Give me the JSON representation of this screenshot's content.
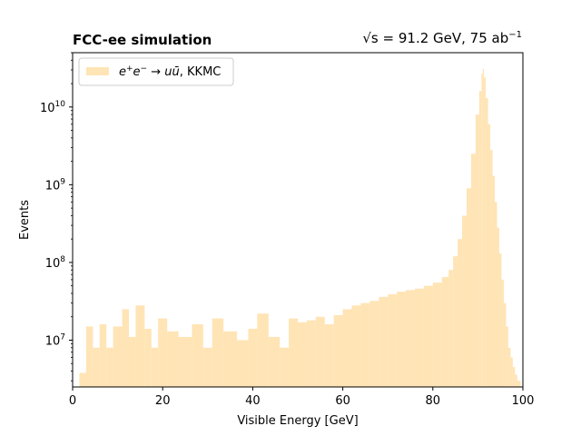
{
  "chart_data": {
    "type": "histogram",
    "title_left": "FCC-ee simulation",
    "title_right": {
      "sqrt": "√s",
      "rest": " = 91.2 GeV, 75 ab",
      "sup": "−1"
    },
    "xlabel": "Visible Energy [GeV]",
    "ylabel": "Events",
    "xlim": [
      0,
      100
    ],
    "ylim": [
      2500000.0,
      50000000000.0
    ],
    "yscale": "log",
    "x_ticks": [
      0,
      20,
      40,
      60,
      80,
      100
    ],
    "x_tick_labels": [
      "0",
      "20",
      "40",
      "60",
      "80",
      "100"
    ],
    "y_ticks": [
      10000000.0,
      100000000.0,
      1000000000.0,
      10000000000.0
    ],
    "y_tick_labels": [
      {
        "base": "10",
        "exp": "7"
      },
      {
        "base": "10",
        "exp": "8"
      },
      {
        "base": "10",
        "exp": "9"
      },
      {
        "base": "10",
        "exp": "10"
      }
    ],
    "legend": {
      "position": "upper-left",
      "label_parts": [
        {
          "t": "e",
          "style": "italic"
        },
        {
          "t": "+",
          "style": "sup"
        },
        {
          "t": "e",
          "style": "italic"
        },
        {
          "t": "−",
          "style": "sup"
        },
        {
          "t": " → ",
          "style": "normal"
        },
        {
          "t": "u",
          "style": "italic"
        },
        {
          "t": "ū",
          "style": "italic"
        },
        {
          "t": ", KKMC",
          "style": "normal"
        }
      ],
      "label": "e+e− → uū, KKMC"
    },
    "series": [
      {
        "name": "e+e− → uū, KKMC",
        "color": "#ffe4b5",
        "peak_x": 91.2,
        "peak_y": 31000000000.0,
        "bins": [
          {
            "x": 2,
            "y": 3800000.0
          },
          {
            "x": 4,
            "y": 15000000.0
          },
          {
            "x": 5,
            "y": 8000000.0
          },
          {
            "x": 7,
            "y": 16000000.0
          },
          {
            "x": 8,
            "y": 8000000.0
          },
          {
            "x": 10,
            "y": 15000000.0
          },
          {
            "x": 12,
            "y": 25000000.0
          },
          {
            "x": 13,
            "y": 11000000.0
          },
          {
            "x": 15,
            "y": 28000000.0
          },
          {
            "x": 17,
            "y": 14000000.0
          },
          {
            "x": 18,
            "y": 8000000.0
          },
          {
            "x": 20,
            "y": 19000000.0
          },
          {
            "x": 22,
            "y": 13000000.0
          },
          {
            "x": 25,
            "y": 11000000.0
          },
          {
            "x": 28,
            "y": 16000000.0
          },
          {
            "x": 30,
            "y": 8000000.0
          },
          {
            "x": 32,
            "y": 19000000.0
          },
          {
            "x": 35,
            "y": 13000000.0
          },
          {
            "x": 38,
            "y": 10000000.0
          },
          {
            "x": 40,
            "y": 14000000.0
          },
          {
            "x": 42,
            "y": 22000000.0
          },
          {
            "x": 45,
            "y": 11000000.0
          },
          {
            "x": 47,
            "y": 8000000.0
          },
          {
            "x": 49,
            "y": 19000000.0
          },
          {
            "x": 51,
            "y": 17000000.0
          },
          {
            "x": 53,
            "y": 18000000.0
          },
          {
            "x": 55,
            "y": 20000000.0
          },
          {
            "x": 57,
            "y": 16000000.0
          },
          {
            "x": 59,
            "y": 21000000.0
          },
          {
            "x": 61,
            "y": 25000000.0
          },
          {
            "x": 63,
            "y": 28000000.0
          },
          {
            "x": 65,
            "y": 30000000.0
          },
          {
            "x": 67,
            "y": 32000000.0
          },
          {
            "x": 69,
            "y": 36000000.0
          },
          {
            "x": 71,
            "y": 39000000.0
          },
          {
            "x": 73,
            "y": 42000000.0
          },
          {
            "x": 75,
            "y": 44000000.0
          },
          {
            "x": 77,
            "y": 46000000.0
          },
          {
            "x": 79,
            "y": 50000000.0
          },
          {
            "x": 81,
            "y": 55000000.0
          },
          {
            "x": 83,
            "y": 65000000.0
          },
          {
            "x": 84,
            "y": 80000000.0
          },
          {
            "x": 85,
            "y": 120000000.0
          },
          {
            "x": 86,
            "y": 200000000.0
          },
          {
            "x": 87,
            "y": 400000000.0
          },
          {
            "x": 88,
            "y": 900000000.0
          },
          {
            "x": 89,
            "y": 2500000000.0
          },
          {
            "x": 90,
            "y": 8000000000.0
          },
          {
            "x": 90.6,
            "y": 16000000000.0
          },
          {
            "x": 91,
            "y": 27000000000.0
          },
          {
            "x": 91.2,
            "y": 31000000000.0
          },
          {
            "x": 91.5,
            "y": 24000000000.0
          },
          {
            "x": 92,
            "y": 13000000000.0
          },
          {
            "x": 92.5,
            "y": 6000000000.0
          },
          {
            "x": 93,
            "y": 2800000000.0
          },
          {
            "x": 93.5,
            "y": 1300000000.0
          },
          {
            "x": 94,
            "y": 600000000.0
          },
          {
            "x": 94.5,
            "y": 280000000.0
          },
          {
            "x": 95,
            "y": 130000000.0
          },
          {
            "x": 95.5,
            "y": 60000000.0
          },
          {
            "x": 96,
            "y": 30000000.0
          },
          {
            "x": 96.5,
            "y": 15000000.0
          },
          {
            "x": 97,
            "y": 8000000.0
          },
          {
            "x": 97.5,
            "y": 6000000.0
          },
          {
            "x": 98,
            "y": 4500000.0
          },
          {
            "x": 98.5,
            "y": 3600000.0
          },
          {
            "x": 99,
            "y": 3000000.0
          }
        ]
      }
    ],
    "grid": false
  }
}
